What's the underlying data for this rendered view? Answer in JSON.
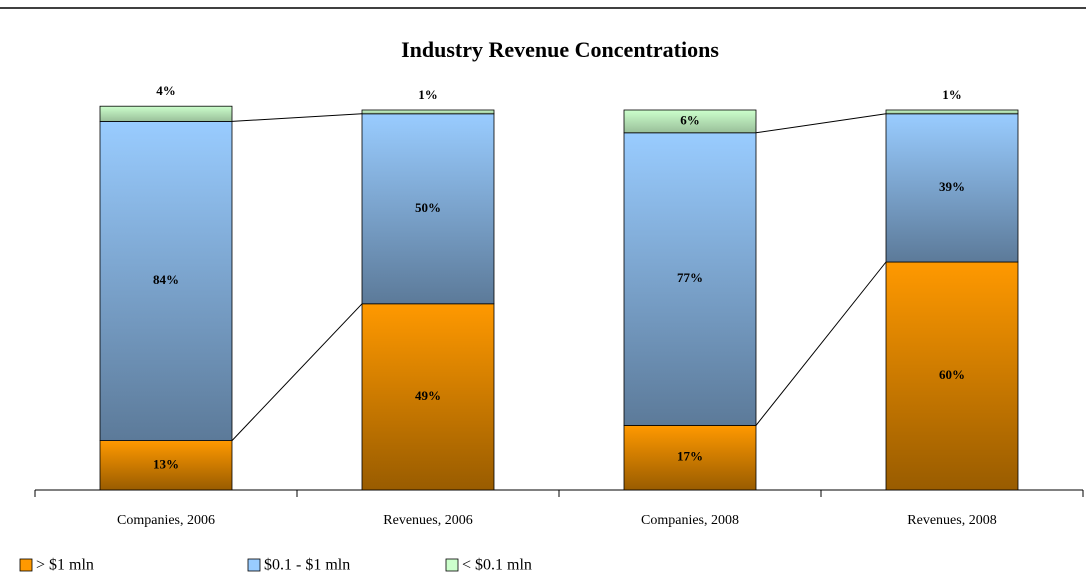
{
  "chart_data": {
    "type": "stacked_bar",
    "title": "Industry Revenue Concentrations",
    "categories": [
      "Companies, 2006",
      "Revenues, 2006",
      "Companies, 2008",
      "Revenues, 2008"
    ],
    "series": [
      {
        "name": "> $1 mln",
        "color": "#ff9900",
        "values": [
          13,
          49,
          17,
          60
        ],
        "value_labels": [
          "13%",
          "49%",
          "17%",
          "60%"
        ]
      },
      {
        "name": "$0.1 - $1 mln",
        "color": "#99ccff",
        "values": [
          84,
          50,
          77,
          39
        ],
        "value_labels": [
          "84%",
          "50%",
          "77%",
          "39%"
        ]
      },
      {
        "name": "< $0.1 mln",
        "color": "#ccffcc",
        "values": [
          4,
          1,
          6,
          1
        ],
        "value_labels": [
          "4%",
          "1%",
          "6%",
          "1%"
        ]
      }
    ],
    "ylim": [
      0,
      100
    ],
    "legend": "bottom-left"
  }
}
